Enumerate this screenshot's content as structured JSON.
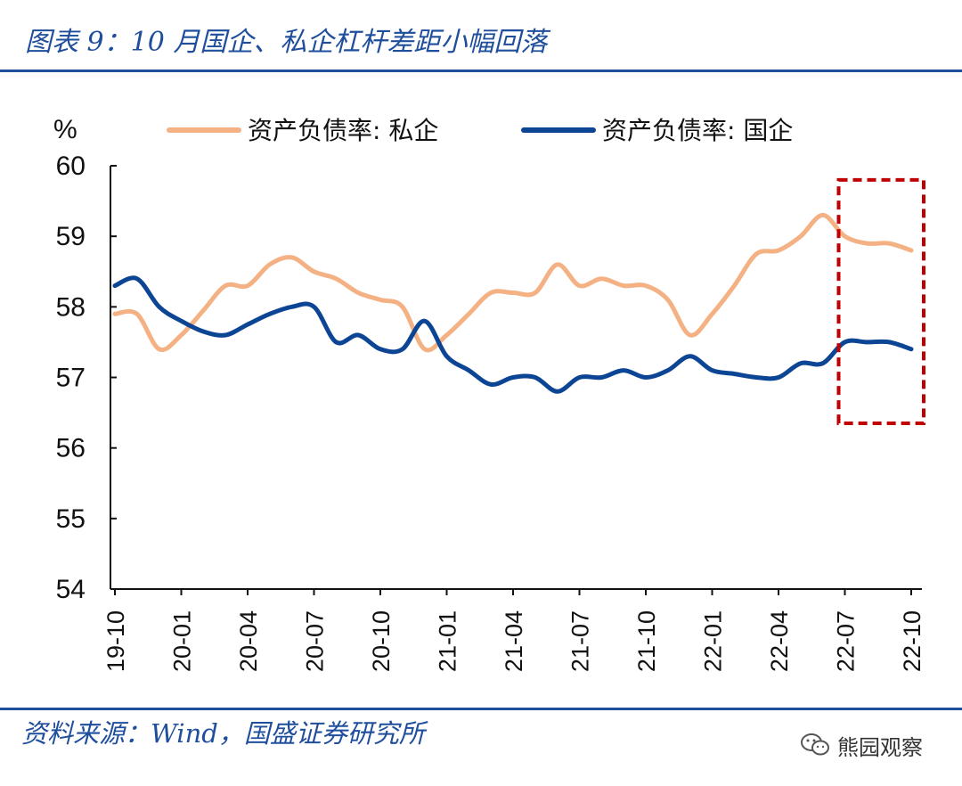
{
  "header": {
    "title": "图表 9：10 月国企、私企杠杆差距小幅回落"
  },
  "footer": {
    "source": "资料来源：Wind，国盛证券研究所",
    "watermark": "熊园观察"
  },
  "chart_data": {
    "type": "line",
    "title": "图表 9：10 月国企、私企杠杆差距小幅回落",
    "ylabel": "%",
    "xlabel": "",
    "ylim": [
      54,
      60
    ],
    "yticks": [
      54,
      55,
      56,
      57,
      58,
      59,
      60
    ],
    "grid": false,
    "legend_position": "top",
    "x_tick_labels": [
      "19-10",
      "20-01",
      "20-04",
      "20-07",
      "20-10",
      "21-01",
      "21-04",
      "21-07",
      "21-10",
      "22-01",
      "22-04",
      "22-07",
      "22-10"
    ],
    "x": [
      "19-10",
      "19-11",
      "19-12",
      "20-01",
      "20-02",
      "20-03",
      "20-04",
      "20-05",
      "20-06",
      "20-07",
      "20-08",
      "20-09",
      "20-10",
      "20-11",
      "20-12",
      "21-01",
      "21-02",
      "21-03",
      "21-04",
      "21-05",
      "21-06",
      "21-07",
      "21-08",
      "21-09",
      "21-10",
      "21-11",
      "21-12",
      "22-01",
      "22-02",
      "22-03",
      "22-04",
      "22-05",
      "22-06",
      "22-07",
      "22-08",
      "22-09",
      "22-10"
    ],
    "series": [
      {
        "name": "资产负债率: 私企",
        "color": "#f4b183",
        "values": [
          57.9,
          57.9,
          57.4,
          57.6,
          57.95,
          58.3,
          58.3,
          58.6,
          58.7,
          58.5,
          58.4,
          58.2,
          58.1,
          58.0,
          57.4,
          57.6,
          57.9,
          58.2,
          58.2,
          58.2,
          58.6,
          58.3,
          58.4,
          58.3,
          58.3,
          58.1,
          57.6,
          57.9,
          58.3,
          58.75,
          58.8,
          59.0,
          59.3,
          59.0,
          58.9,
          58.9,
          58.8
        ]
      },
      {
        "name": "资产负债率: 国企",
        "color": "#0d4595",
        "values": [
          58.3,
          58.4,
          58.0,
          57.8,
          57.65,
          57.6,
          57.75,
          57.9,
          58.0,
          58.0,
          57.5,
          57.6,
          57.4,
          57.4,
          57.8,
          57.3,
          57.1,
          56.9,
          57.0,
          57.0,
          56.8,
          57.0,
          57.0,
          57.1,
          57.0,
          57.1,
          57.3,
          57.1,
          57.05,
          57.0,
          57.0,
          57.2,
          57.2,
          57.5,
          57.5,
          57.5,
          57.4
        ]
      }
    ],
    "annotation": {
      "type": "dashed-box",
      "color": "#c00000",
      "x_range": [
        "22-07",
        "22-10"
      ],
      "y_range": [
        56.35,
        59.8
      ]
    }
  }
}
